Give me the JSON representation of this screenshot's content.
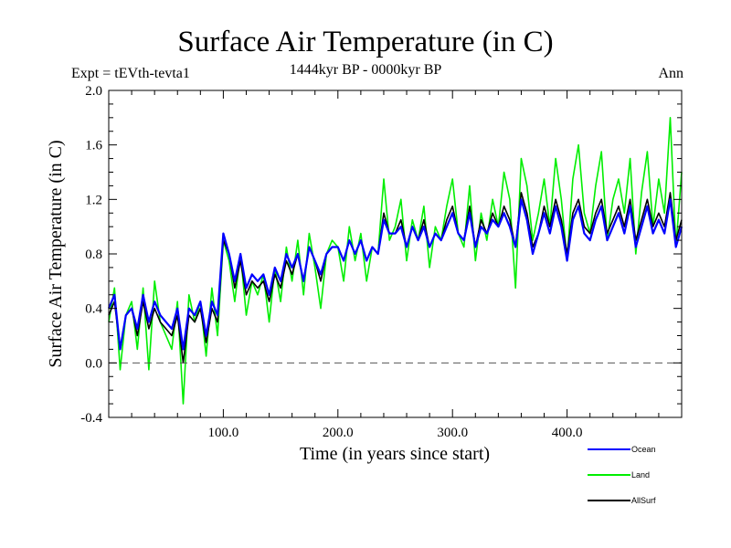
{
  "header": {
    "title": "Surface Air Temperature (in C)",
    "expt": "Expt = tEVth-tevta1",
    "period": "1444kyr BP - 0000kyr BP",
    "season": "Ann"
  },
  "chart_data": {
    "type": "line",
    "title": "Surface Air Temperature (in C)",
    "xlabel": "Time (in years since start)",
    "ylabel": "Surface Air Temperature (in C)",
    "xlim": [
      0,
      500
    ],
    "ylim": [
      -0.4,
      2.0
    ],
    "xticks": [
      {
        "v": 100,
        "label": "100.0"
      },
      {
        "v": 200,
        "label": "200.0"
      },
      {
        "v": 300,
        "label": "300.0"
      },
      {
        "v": 400,
        "label": "400.0"
      }
    ],
    "yticks": [
      {
        "v": -0.4,
        "label": "-0.4"
      },
      {
        "v": 0.0,
        "label": "0.0"
      },
      {
        "v": 0.4,
        "label": "0.4"
      },
      {
        "v": 0.8,
        "label": "0.8"
      },
      {
        "v": 1.2,
        "label": "1.2"
      },
      {
        "v": 1.6,
        "label": "1.6"
      },
      {
        "v": 2.0,
        "label": "2.0"
      }
    ],
    "reference_line": {
      "y": 0.0,
      "style": "dashed"
    },
    "legend_position": "bottom-right",
    "x": [
      0,
      5,
      10,
      15,
      20,
      25,
      30,
      35,
      40,
      45,
      50,
      55,
      60,
      65,
      70,
      75,
      80,
      85,
      90,
      95,
      100,
      105,
      110,
      115,
      120,
      125,
      130,
      135,
      140,
      145,
      150,
      155,
      160,
      165,
      170,
      175,
      180,
      185,
      190,
      195,
      200,
      205,
      210,
      215,
      220,
      225,
      230,
      235,
      240,
      245,
      250,
      255,
      260,
      265,
      270,
      275,
      280,
      285,
      290,
      295,
      300,
      305,
      310,
      315,
      320,
      325,
      330,
      335,
      340,
      345,
      350,
      355,
      360,
      365,
      370,
      375,
      380,
      385,
      390,
      395,
      400,
      405,
      410,
      415,
      420,
      425,
      430,
      435,
      440,
      445,
      450,
      455,
      460,
      465,
      470,
      475,
      480,
      485,
      490,
      495,
      500
    ],
    "series": [
      {
        "name": "Land",
        "color": "#00ee00",
        "values": [
          0.3,
          0.55,
          -0.05,
          0.35,
          0.45,
          0.1,
          0.55,
          -0.05,
          0.6,
          0.3,
          0.2,
          0.1,
          0.45,
          -0.3,
          0.5,
          0.3,
          0.45,
          0.05,
          0.55,
          0.2,
          0.9,
          0.75,
          0.45,
          0.8,
          0.35,
          0.6,
          0.5,
          0.65,
          0.3,
          0.7,
          0.45,
          0.85,
          0.6,
          0.9,
          0.5,
          0.95,
          0.7,
          0.4,
          0.8,
          0.9,
          0.85,
          0.6,
          1.0,
          0.75,
          0.95,
          0.6,
          0.85,
          0.8,
          1.35,
          0.9,
          1.0,
          1.2,
          0.75,
          1.05,
          0.9,
          1.15,
          0.7,
          1.0,
          0.9,
          1.15,
          1.35,
          0.95,
          0.85,
          1.3,
          0.75,
          1.1,
          0.9,
          1.2,
          1.0,
          1.4,
          1.2,
          0.55,
          1.5,
          1.3,
          0.9,
          1.1,
          1.35,
          1.0,
          1.5,
          1.2,
          0.75,
          1.35,
          1.6,
          1.1,
          0.95,
          1.3,
          1.55,
          0.9,
          1.2,
          1.35,
          1.1,
          1.5,
          0.8,
          1.25,
          1.55,
          1.0,
          1.35,
          1.1,
          1.8,
          0.85,
          1.4
        ]
      },
      {
        "name": "AllSurf",
        "color": "#000000",
        "values": [
          0.35,
          0.45,
          0.1,
          0.35,
          0.4,
          0.2,
          0.45,
          0.25,
          0.4,
          0.3,
          0.25,
          0.2,
          0.35,
          0.0,
          0.35,
          0.3,
          0.4,
          0.15,
          0.4,
          0.3,
          0.9,
          0.8,
          0.55,
          0.75,
          0.5,
          0.6,
          0.55,
          0.6,
          0.45,
          0.65,
          0.55,
          0.75,
          0.65,
          0.8,
          0.6,
          0.85,
          0.75,
          0.6,
          0.8,
          0.85,
          0.85,
          0.75,
          0.9,
          0.8,
          0.9,
          0.75,
          0.85,
          0.8,
          1.1,
          0.95,
          0.95,
          1.05,
          0.85,
          1.0,
          0.9,
          1.05,
          0.85,
          0.95,
          0.9,
          1.05,
          1.15,
          0.95,
          0.9,
          1.15,
          0.85,
          1.05,
          0.95,
          1.1,
          1.0,
          1.15,
          1.05,
          0.85,
          1.25,
          1.1,
          0.85,
          0.95,
          1.15,
          1.0,
          1.2,
          1.05,
          0.8,
          1.1,
          1.2,
          1.0,
          0.95,
          1.1,
          1.2,
          0.95,
          1.05,
          1.15,
          1.0,
          1.2,
          0.9,
          1.05,
          1.2,
          1.0,
          1.1,
          1.0,
          1.25,
          0.9,
          1.05
        ]
      },
      {
        "name": "Ocean",
        "color": "#0000ff",
        "values": [
          0.4,
          0.5,
          0.1,
          0.35,
          0.4,
          0.25,
          0.5,
          0.3,
          0.45,
          0.35,
          0.3,
          0.25,
          0.4,
          0.1,
          0.4,
          0.35,
          0.45,
          0.2,
          0.45,
          0.35,
          0.95,
          0.8,
          0.6,
          0.8,
          0.55,
          0.65,
          0.6,
          0.65,
          0.5,
          0.7,
          0.6,
          0.8,
          0.7,
          0.8,
          0.6,
          0.85,
          0.75,
          0.65,
          0.8,
          0.85,
          0.85,
          0.75,
          0.9,
          0.8,
          0.9,
          0.75,
          0.85,
          0.8,
          1.05,
          0.95,
          0.95,
          1.0,
          0.85,
          1.0,
          0.9,
          1.0,
          0.85,
          0.95,
          0.9,
          1.0,
          1.1,
          0.95,
          0.9,
          1.1,
          0.85,
          1.0,
          0.95,
          1.05,
          1.0,
          1.1,
          1.0,
          0.85,
          1.2,
          1.05,
          0.8,
          0.95,
          1.1,
          0.95,
          1.15,
          1.0,
          0.75,
          1.05,
          1.15,
          0.95,
          0.9,
          1.05,
          1.15,
          0.9,
          1.0,
          1.1,
          0.95,
          1.15,
          0.85,
          1.0,
          1.15,
          0.95,
          1.05,
          0.95,
          1.2,
          0.85,
          1.0
        ]
      }
    ]
  }
}
